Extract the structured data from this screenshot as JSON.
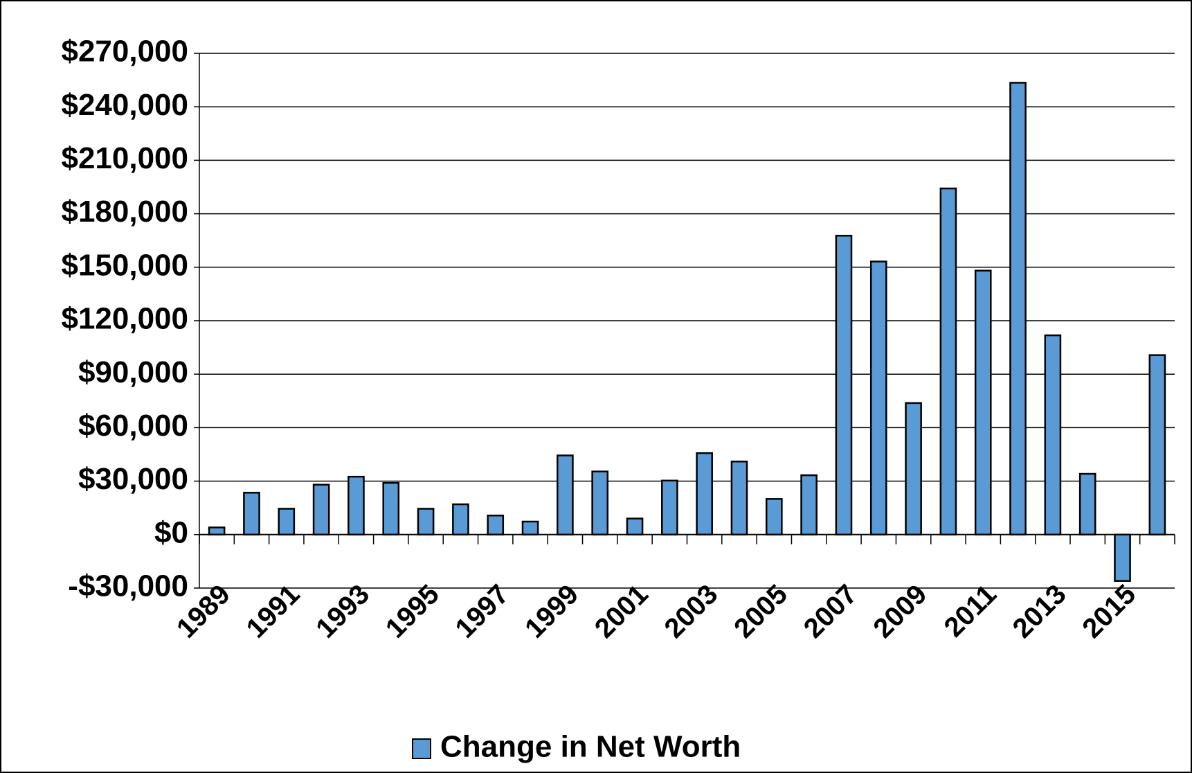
{
  "chart_data": {
    "type": "bar",
    "categories": [
      "1989",
      null,
      "1991",
      null,
      "1993",
      null,
      "1995",
      null,
      "1997",
      null,
      "1999",
      null,
      "2001",
      null,
      "2003",
      null,
      "2005",
      null,
      "2007",
      null,
      "2009",
      null,
      "2011",
      null,
      "2013",
      null,
      "2015",
      null
    ],
    "series": [
      {
        "name": "Change in Net Worth",
        "color": "#5a9bd5",
        "values": [
          4000,
          23500,
          14500,
          28000,
          32500,
          29000,
          14500,
          17000,
          10700,
          7300,
          44400,
          35400,
          9000,
          30300,
          45700,
          41000,
          20000,
          33300,
          167700,
          153200,
          73800,
          194200,
          148100,
          253500,
          111800,
          34100,
          -26000,
          100700
        ]
      }
    ],
    "ylim": [
      -30000,
      270000
    ],
    "yticks": [
      {
        "value": -30000,
        "label": "-$30,000"
      },
      {
        "value": 0,
        "label": "$0"
      },
      {
        "value": 30000,
        "label": "$30,000"
      },
      {
        "value": 60000,
        "label": "$60,000"
      },
      {
        "value": 90000,
        "label": "$90,000"
      },
      {
        "value": 120000,
        "label": "$120,000"
      },
      {
        "value": 150000,
        "label": "$150,000"
      },
      {
        "value": 180000,
        "label": "$180,000"
      },
      {
        "value": 210000,
        "label": "$210,000"
      },
      {
        "value": 240000,
        "label": "$240,000"
      },
      {
        "value": 270000,
        "label": "$270,000"
      }
    ],
    "grid": true,
    "legend": "bottom"
  }
}
